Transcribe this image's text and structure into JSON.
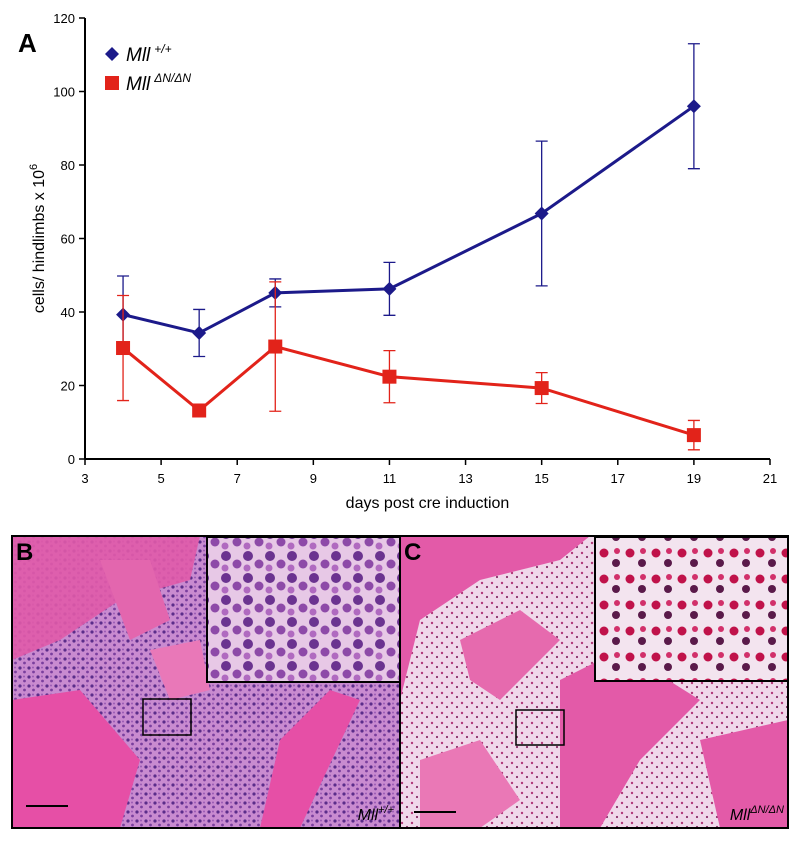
{
  "chart_data": {
    "type": "line",
    "panel_label": "A",
    "x_label": "days post cre induction",
    "y_label": "cells/ hindlimbs x 10",
    "y_label_superscript": "6",
    "x": [
      4,
      6,
      8,
      11,
      15,
      19
    ],
    "series": [
      {
        "name": "Mll",
        "name_superscript": "+/+",
        "color": "#1c1a8a",
        "marker": "diamond",
        "values": [
          39.3,
          34.3,
          45.2,
          46.3,
          66.8,
          96.0
        ],
        "errors": [
          10.5,
          6.4,
          3.8,
          7.2,
          19.7,
          17.0
        ]
      },
      {
        "name": "Mll",
        "name_superscript": "ΔN/ΔN",
        "color": "#e2231a",
        "marker": "square",
        "values": [
          30.2,
          13.2,
          30.6,
          22.4,
          19.3,
          6.5
        ],
        "errors": [
          14.3,
          1.0,
          17.6,
          7.1,
          4.2,
          4.0
        ]
      }
    ],
    "xlim": [
      3,
      21
    ],
    "xticks": [
      3,
      5,
      7,
      9,
      11,
      13,
      15,
      17,
      19,
      21
    ],
    "ylim": [
      0,
      120
    ],
    "yticks": [
      0,
      20,
      40,
      60,
      80,
      100,
      120
    ]
  },
  "panels": [
    {
      "label": "B",
      "caption": "Mll",
      "caption_superscript": "+/+"
    },
    {
      "label": "C",
      "caption": "Mll",
      "caption_superscript": "ΔN/ΔN"
    }
  ]
}
